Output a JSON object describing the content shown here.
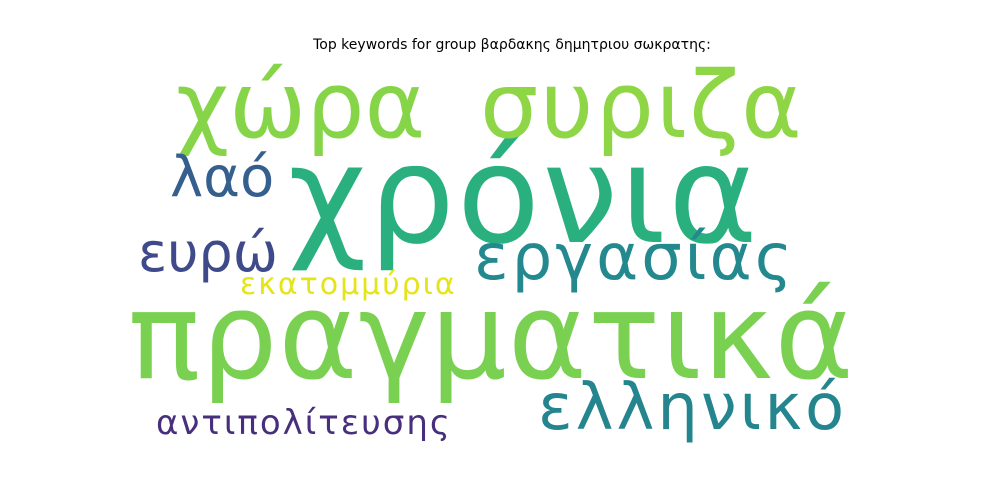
{
  "title": "Top keywords for group βαρδακης δημητριου σωκρατης:",
  "words": [
    {
      "text": "χρόνια",
      "color": "#2ab07f"
    },
    {
      "text": "πραγματικά",
      "color": "#7ad151"
    },
    {
      "text": "χώρα",
      "color": "#86d549"
    },
    {
      "text": "συριζα",
      "color": "#8ed645"
    },
    {
      "text": "εργασίας",
      "color": "#23898e"
    },
    {
      "text": "ελληνικό",
      "color": "#25858e"
    },
    {
      "text": "λαό",
      "color": "#355f8d"
    },
    {
      "text": "ευρώ",
      "color": "#3e4a89"
    },
    {
      "text": "εκατομμύρια",
      "color": "#e5e419"
    },
    {
      "text": "αντιπολίτευσης",
      "color": "#472f7d"
    }
  ]
}
